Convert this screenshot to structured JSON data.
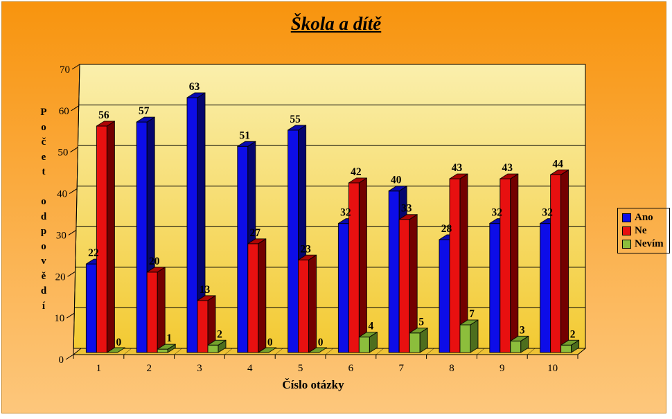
{
  "chart_data": {
    "type": "bar",
    "title": "Škola a dítě",
    "xlabel": "Číslo otázky",
    "ylabel": "Počet odpovědí",
    "categories": [
      "1",
      "2",
      "3",
      "4",
      "5",
      "6",
      "7",
      "8",
      "9",
      "10"
    ],
    "series": [
      {
        "name": "Ano",
        "color": "#0d0de8",
        "side": "#05056e",
        "top": "#0909b2",
        "values": [
          22,
          57,
          63,
          51,
          55,
          32,
          40,
          28,
          32,
          32
        ]
      },
      {
        "name": "Ne",
        "color": "#e81010",
        "side": "#730000",
        "top": "#ae0505",
        "values": [
          56,
          20,
          13,
          27,
          23,
          42,
          33,
          43,
          43,
          44
        ]
      },
      {
        "name": "Nevím",
        "color": "#8cbe3c",
        "side": "#4d6e1e",
        "top": "#74a02c",
        "values": [
          0,
          1,
          2,
          0,
          0,
          4,
          5,
          7,
          3,
          2
        ]
      }
    ],
    "ylim": [
      0,
      70
    ],
    "yticks": [
      0,
      10,
      20,
      30,
      40,
      50,
      60,
      70
    ],
    "grid": true,
    "legend_position": "right",
    "colors": {
      "background_top": "#f8940e",
      "background_bottom": "#fdc77c",
      "wall_top": "#faefac",
      "wall_bottom": "#f3ca33",
      "floor": "#eec235",
      "line": "#000000"
    }
  }
}
